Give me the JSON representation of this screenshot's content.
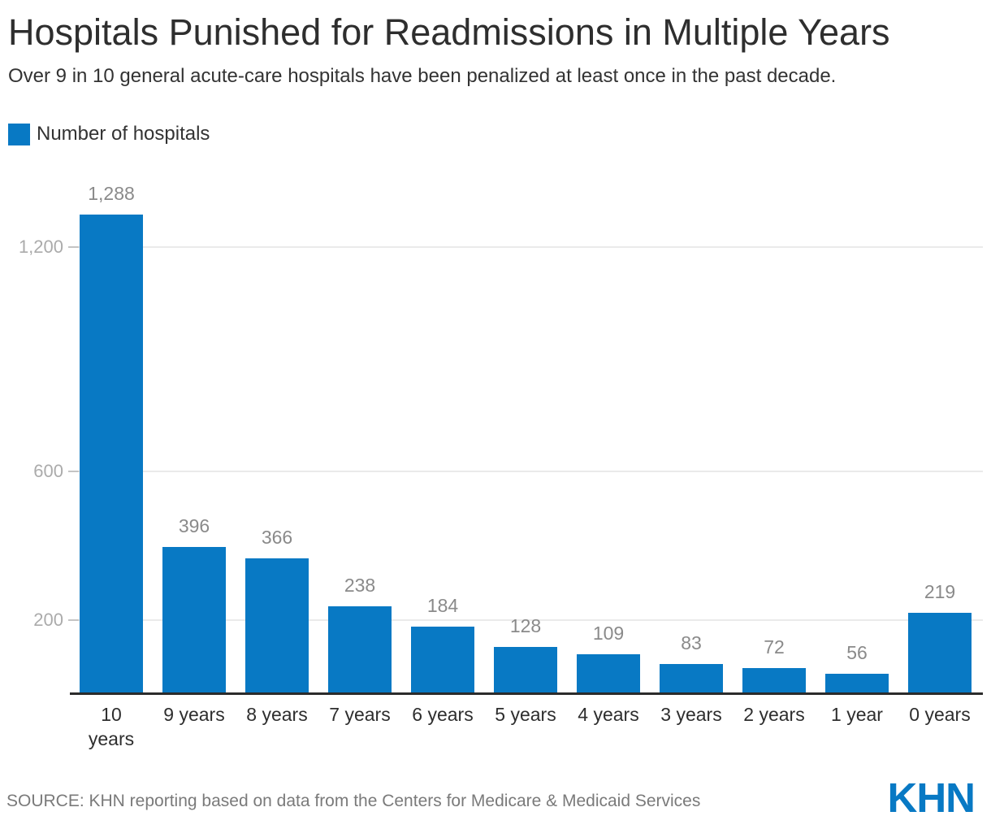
{
  "header": {
    "title": "Hospitals Punished for Readmissions in Multiple Years",
    "subtitle": "Over 9 in 10 general acute-care hospitals have been penalized at least once in the past decade."
  },
  "legend": {
    "label": "Number of hospitals",
    "swatch_color": "#0879c4"
  },
  "chart_data": {
    "type": "bar",
    "title": "Hospitals Punished for Readmissions in Multiple Years",
    "subtitle": "Over 9 in 10 general acute-care hospitals have been penalized at least once in the past decade.",
    "series_name": "Number of hospitals",
    "categories": [
      "10\nyears",
      "9 years",
      "8 years",
      "7 years",
      "6 years",
      "5 years",
      "4 years",
      "3 years",
      "2 years",
      "1 year",
      "0 years"
    ],
    "values": [
      1288,
      396,
      366,
      238,
      184,
      128,
      109,
      83,
      72,
      56,
      219
    ],
    "value_labels": [
      "1,288",
      "396",
      "366",
      "238",
      "184",
      "128",
      "109",
      "83",
      "72",
      "56",
      "219"
    ],
    "xlabel": "",
    "ylabel": "",
    "yticks": [
      200,
      600,
      1200
    ],
    "ytick_labels": [
      "200",
      "600",
      "1,200"
    ],
    "ylim": [
      0,
      1340
    ],
    "grid": "horizontal",
    "legend_position": "top-left",
    "bar_color": "#0879c4"
  },
  "footer": {
    "source": "SOURCE: KHN reporting based on data from the Centers for Medicare & Medicaid Services",
    "logo": "KHN"
  }
}
